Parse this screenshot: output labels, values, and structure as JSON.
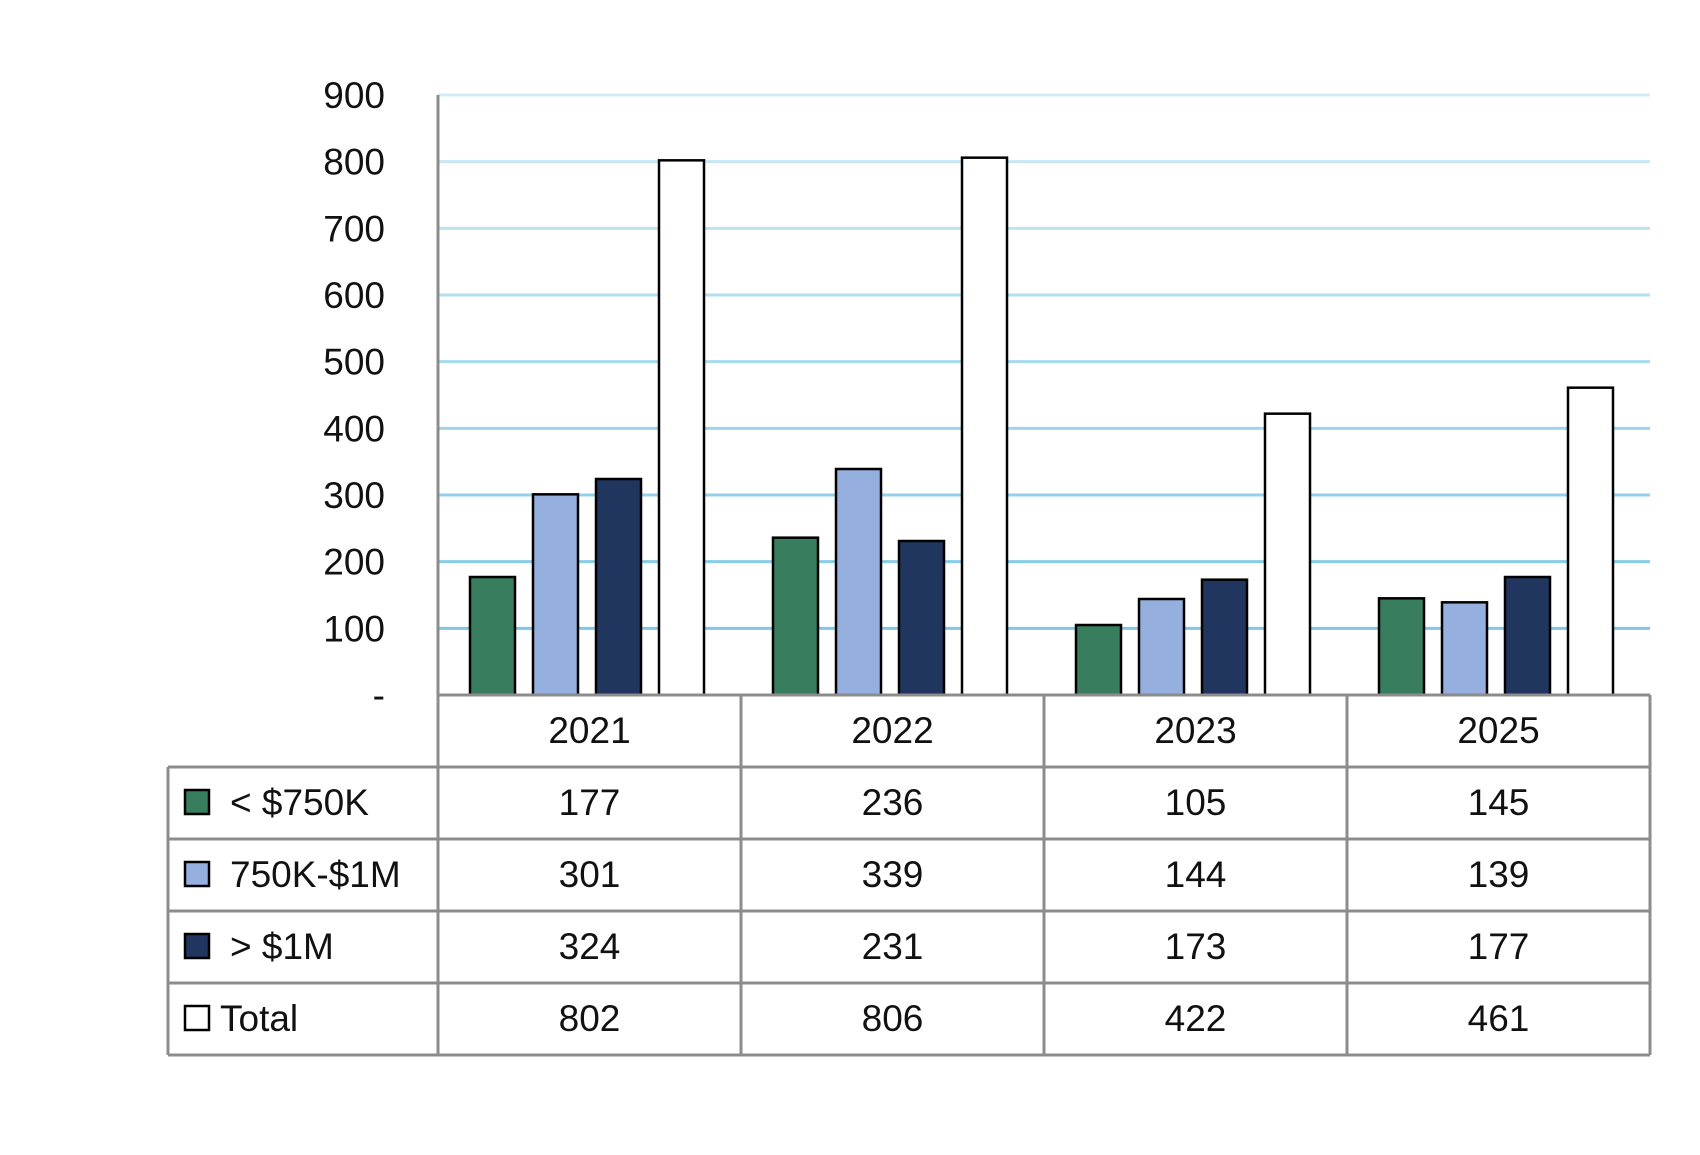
{
  "chart_data": {
    "type": "bar",
    "categories": [
      "2021",
      "2022",
      "2023",
      "2025"
    ],
    "series": [
      {
        "name": "< $750K",
        "values": [
          177,
          236,
          105,
          145
        ],
        "color": "#387d5e"
      },
      {
        "name": "750K-$1M",
        "values": [
          301,
          339,
          144,
          139
        ],
        "color": "#95b0de"
      },
      {
        "name": "> $1M",
        "values": [
          324,
          231,
          173,
          177
        ],
        "color": "#20365f"
      },
      {
        "name": "Total",
        "values": [
          802,
          806,
          422,
          461
        ],
        "color": "#ffffff"
      }
    ],
    "ylim": [
      0,
      900
    ],
    "yticks": [
      0,
      100,
      200,
      300,
      400,
      500,
      600,
      700,
      800,
      900
    ],
    "ytick_labels": [
      "-",
      "100",
      "200",
      "300",
      "400",
      "500",
      "600",
      "700",
      "800",
      "900"
    ],
    "grid": true,
    "grid_color": "#7ec8e6",
    "legend": "data-table-below",
    "title": "",
    "xlabel": "",
    "ylabel": ""
  }
}
